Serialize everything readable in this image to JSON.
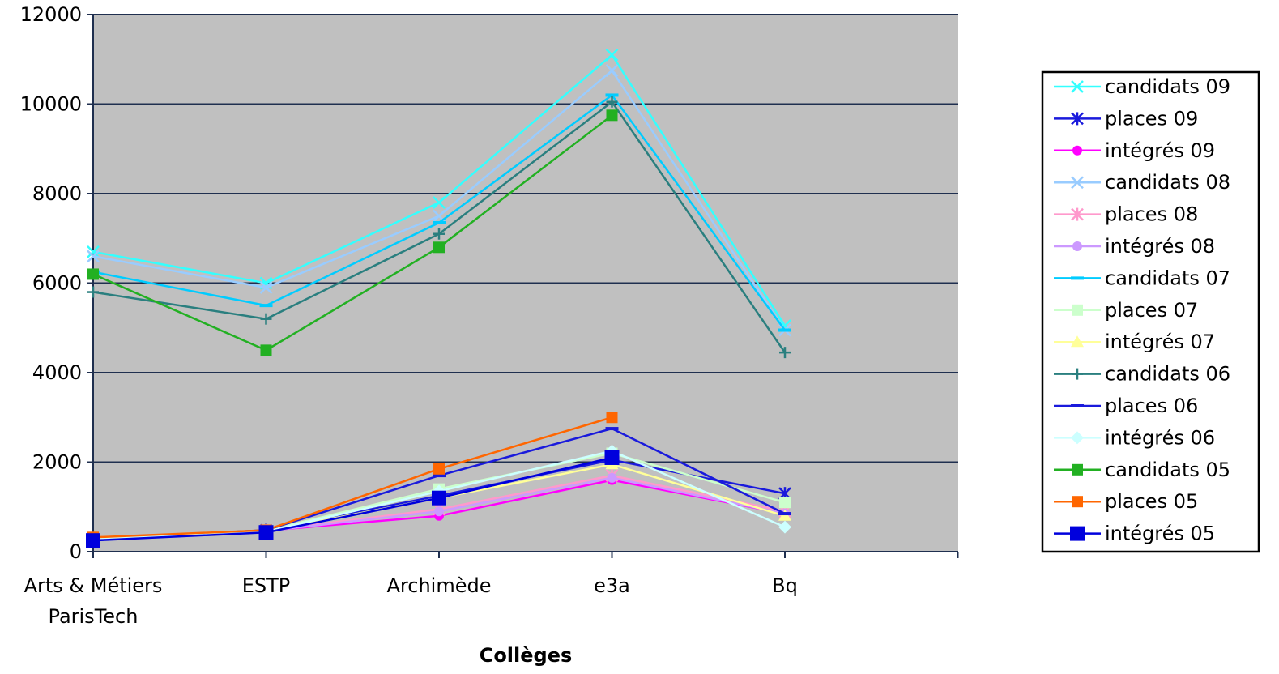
{
  "chart_data": {
    "type": "line",
    "title": "",
    "xlabel": "Collèges",
    "ylabel": "",
    "categories": [
      [
        "Arts & Métiers",
        "ParisTech"
      ],
      [
        "ESTP"
      ],
      [
        "Archimède"
      ],
      [
        "e3a"
      ],
      [
        "Bq"
      ]
    ],
    "ylim": [
      0,
      12000
    ],
    "yticks": [
      0,
      2000,
      4000,
      6000,
      8000,
      10000,
      12000
    ],
    "grid": true,
    "plot_background": "#c0c0c0",
    "legend_position": "right",
    "series": [
      {
        "name": "candidats 09",
        "color": "#33ffff",
        "marker": "x",
        "values": [
          6700,
          6000,
          7800,
          11100,
          5050
        ]
      },
      {
        "name": "places 09",
        "color": "#1a1adc",
        "marker": "star",
        "values": [
          300,
          480,
          1250,
          2050,
          1300
        ]
      },
      {
        "name": "intégrés 09",
        "color": "#ff00ff",
        "marker": "circle",
        "values": [
          300,
          470,
          800,
          1600,
          850
        ]
      },
      {
        "name": "candidats 08",
        "color": "#99ccff",
        "marker": "x",
        "values": [
          6600,
          5900,
          7500,
          10750,
          4950
        ]
      },
      {
        "name": "places 08",
        "color": "#ff99cc",
        "marker": "star",
        "values": [
          300,
          470,
          950,
          1700,
          900
        ]
      },
      {
        "name": "intégrés 08",
        "color": "#cc99ff",
        "marker": "circle",
        "values": [
          300,
          460,
          900,
          1650,
          850
        ]
      },
      {
        "name": "candidats 07",
        "color": "#00ccff",
        "marker": "dash",
        "values": [
          6250,
          5500,
          7350,
          10200,
          4950
        ]
      },
      {
        "name": "places 07",
        "color": "#ccffcc",
        "marker": "square",
        "values": [
          300,
          470,
          1400,
          2200,
          1100
        ]
      },
      {
        "name": "intégrés 07",
        "color": "#ffff99",
        "marker": "triangle",
        "values": [
          300,
          460,
          1200,
          1950,
          800
        ]
      },
      {
        "name": "candidats 06",
        "color": "#2a7f7f",
        "marker": "plus",
        "values": [
          5800,
          5200,
          7100,
          10050,
          4450
        ]
      },
      {
        "name": "places 06",
        "color": "#1a1adc",
        "marker": "dash",
        "values": [
          300,
          480,
          1700,
          2750,
          850
        ]
      },
      {
        "name": "intégrés 06",
        "color": "#ccffff",
        "marker": "diamond",
        "values": [
          300,
          450,
          1350,
          2250,
          550
        ]
      },
      {
        "name": "candidats 05",
        "color": "#22b022",
        "marker": "square",
        "values": [
          6200,
          4500,
          6800,
          9750,
          null
        ]
      },
      {
        "name": "places 05",
        "color": "#ff6600",
        "marker": "square",
        "values": [
          320,
          480,
          1850,
          3000,
          null
        ]
      },
      {
        "name": "intégrés 05",
        "color": "#0000dd",
        "marker": "bigsquare",
        "values": [
          250,
          430,
          1200,
          2100,
          null
        ]
      }
    ]
  }
}
